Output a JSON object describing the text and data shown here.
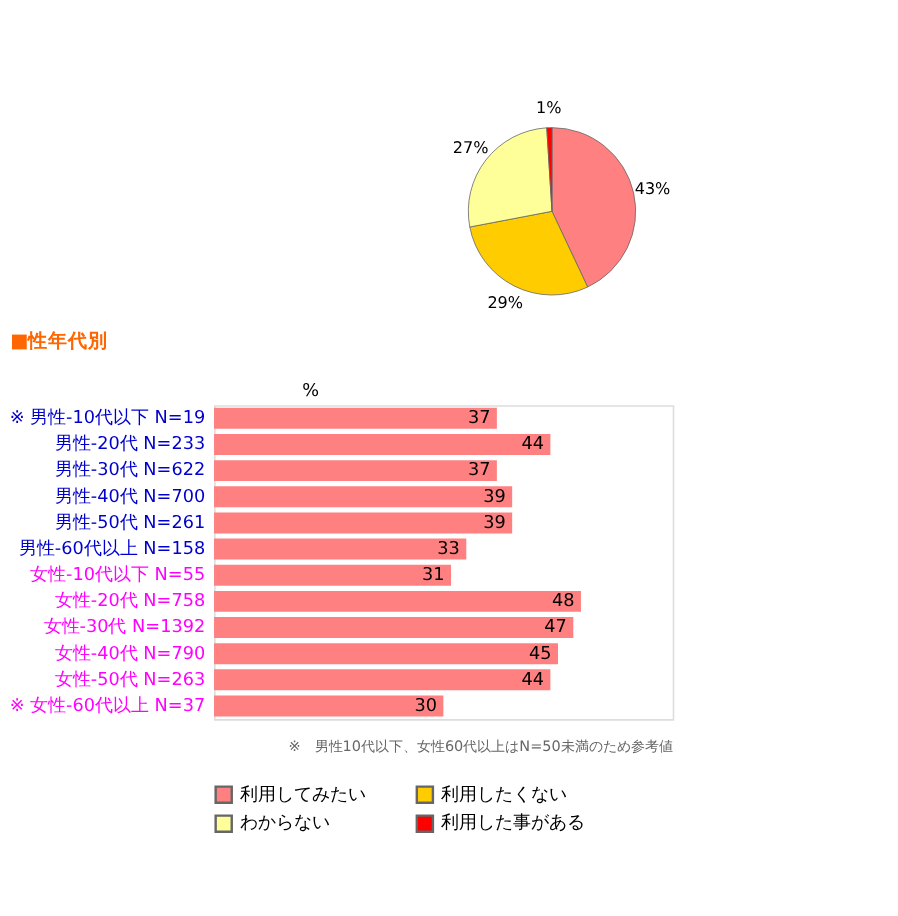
{
  "chart_data": [
    {
      "type": "pie",
      "categories": [
        "利用してみたい",
        "利用したくない",
        "わからない",
        "利用した事がある"
      ],
      "values": [
        43,
        29,
        27,
        1
      ],
      "colors": [
        "#ff8080",
        "#ffcc00",
        "#ffff99",
        "#ff0000"
      ],
      "value_labels": [
        "43%",
        "29%",
        "27%",
        "1%"
      ],
      "legend": "bottom"
    },
    {
      "type": "bar",
      "orientation": "horizontal",
      "title": "■性年代別",
      "categories": [
        "※ 男性-10代以下 N=19",
        "男性-20代 N=233",
        "男性-30代 N=622",
        "男性-40代 N=700",
        "男性-50代 N=261",
        "男性-60代以上 N=158",
        "女性-10代以下 N=55",
        "女性-20代 N=758",
        "女性-30代 N=1392",
        "女性-40代 N=790",
        "女性-50代 N=263",
        "※ 女性-60代以上 N=37"
      ],
      "values": [
        37,
        44,
        37,
        39,
        39,
        33,
        31,
        48,
        47,
        45,
        44,
        30
      ],
      "color": "#ff8080",
      "data_labels": true,
      "annotations": [
        "%",
        "※　男性10代以下、女性60代以上はN=50未満のため参考値"
      ]
    }
  ]
}
